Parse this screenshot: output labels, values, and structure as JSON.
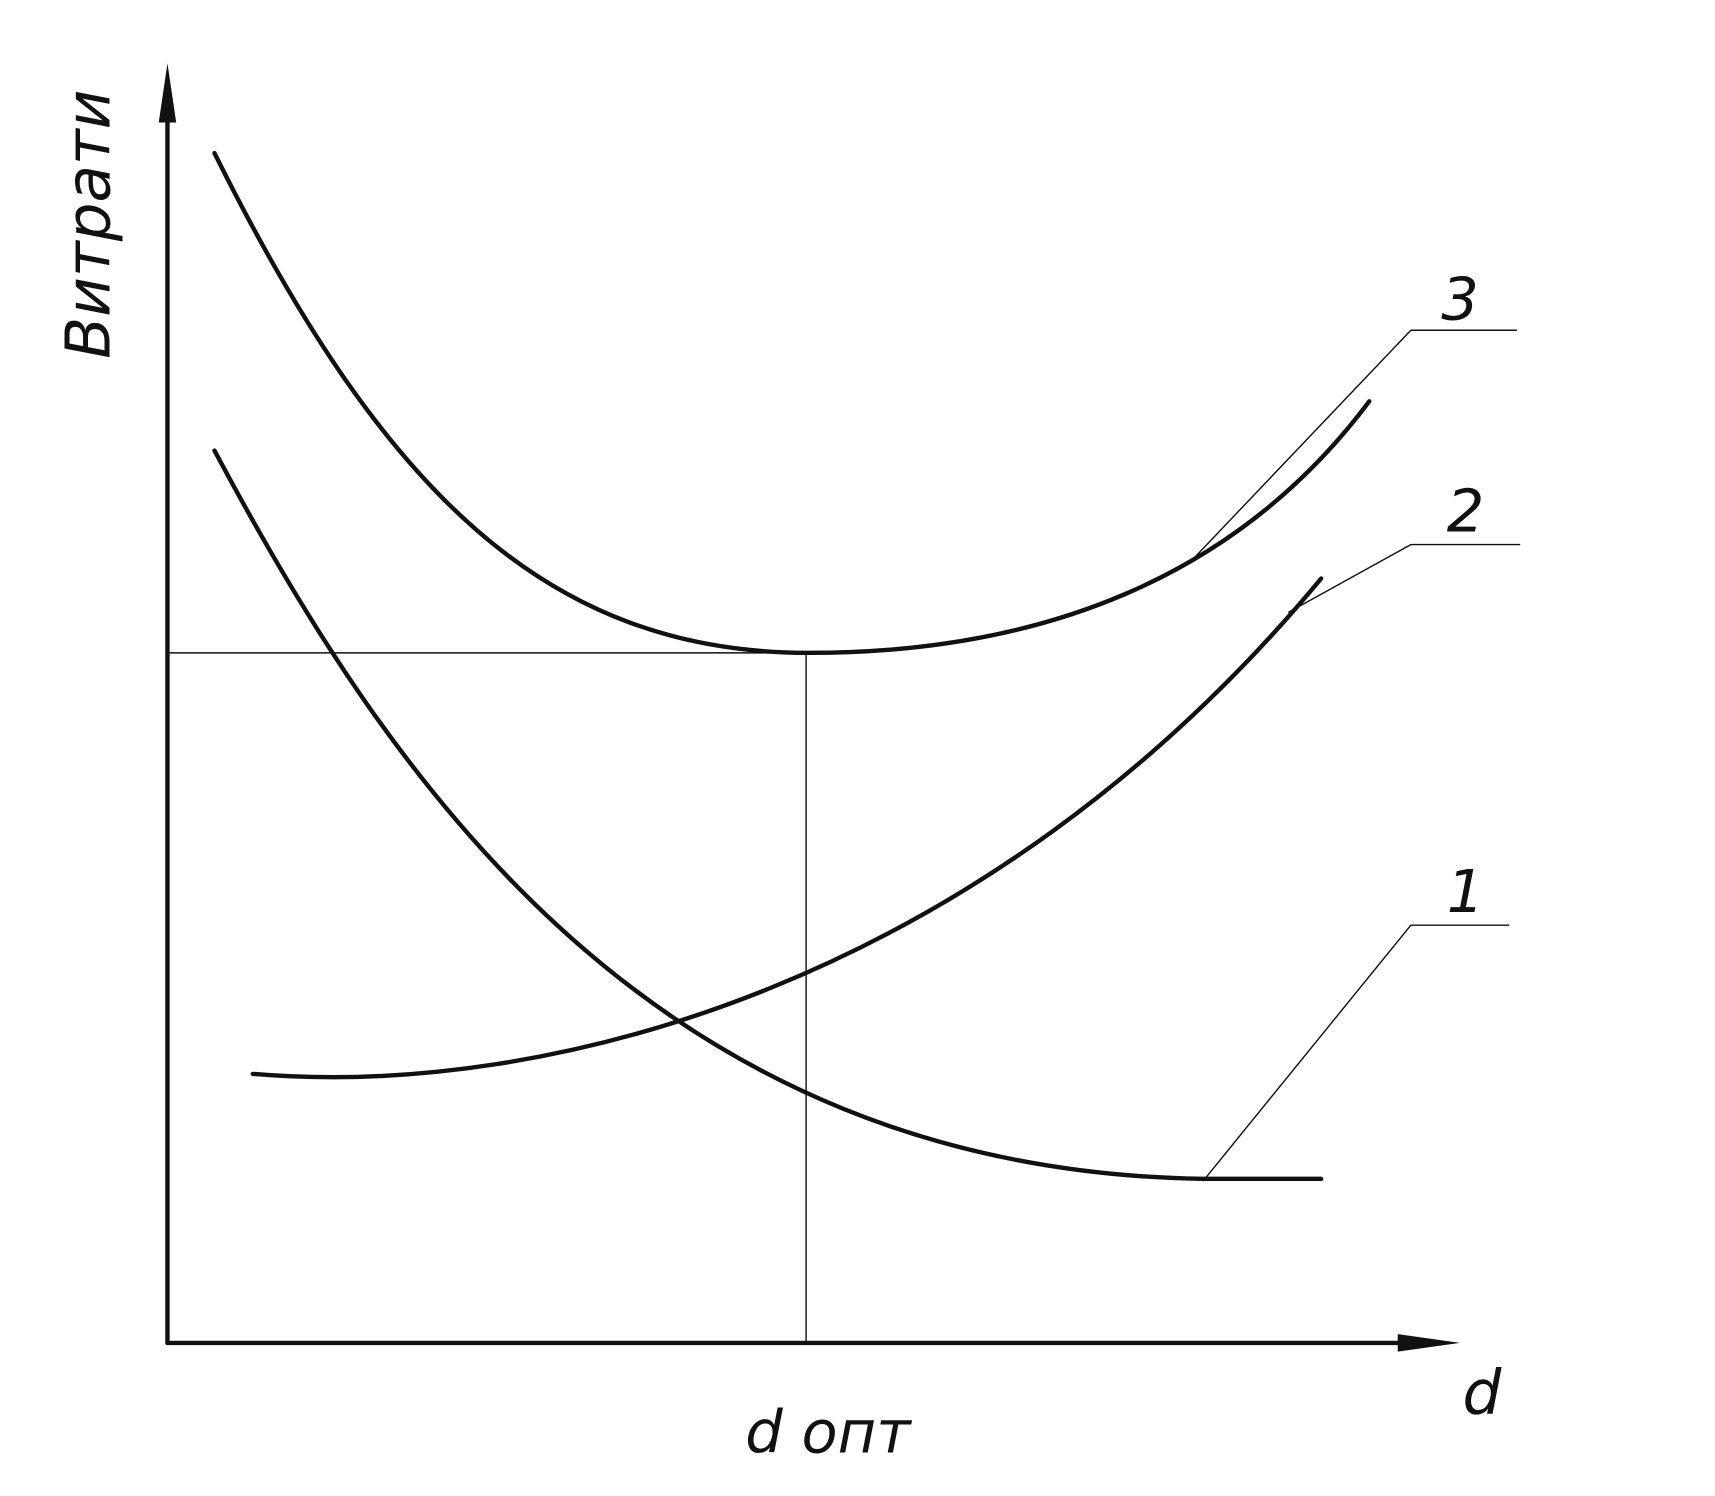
{
  "y_axis_label": "Витрати",
  "x_axis_label": "d",
  "optimum_label": "d опт",
  "curve_labels": [
    "1",
    "2",
    "3"
  ]
}
